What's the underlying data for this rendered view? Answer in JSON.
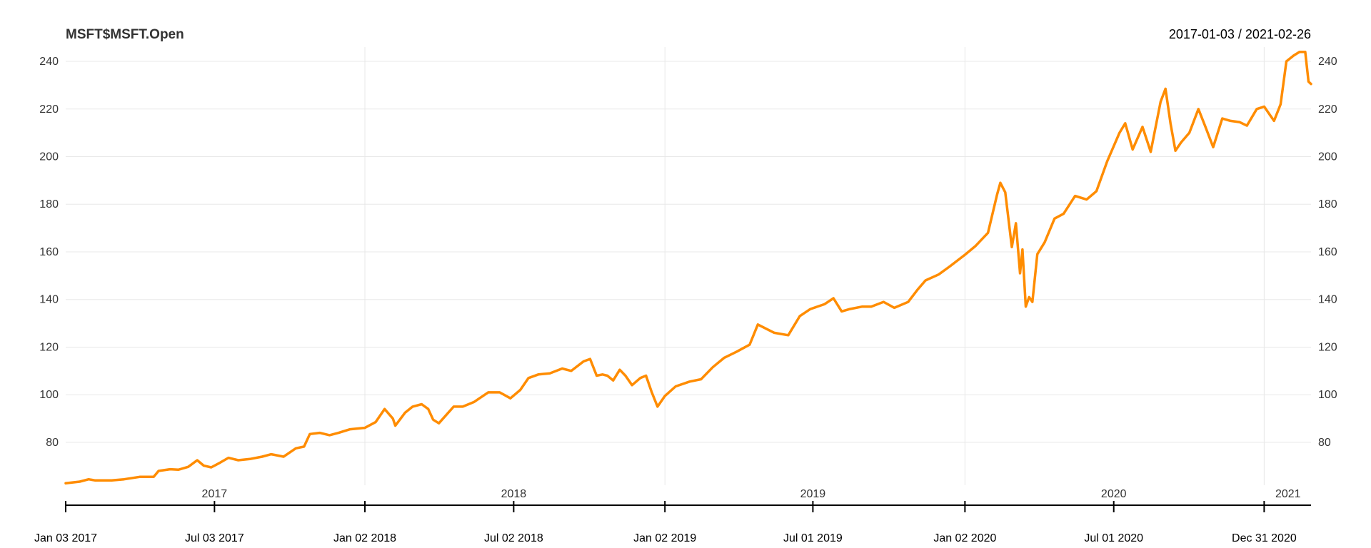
{
  "header": {
    "title": "MSFT$MSFT.Open",
    "date_range": "2017-01-03 / 2021-02-26"
  },
  "colors": {
    "series": "#ff8c00",
    "grid": "#e8e8e8",
    "axis": "#000000"
  },
  "chart_data": {
    "type": "line",
    "title": "MSFT$MSFT.Open",
    "subtitle": "2017-01-03 / 2021-02-26",
    "xlabel": "",
    "ylabel": "",
    "xlim": [
      "2017-01-03",
      "2021-02-26"
    ],
    "ylim": [
      62,
      246
    ],
    "grid": true,
    "legend": "none",
    "y_ticks": [
      80,
      100,
      120,
      140,
      160,
      180,
      200,
      220,
      240
    ],
    "y_tick_labels": [
      "80",
      "100",
      "120",
      "140",
      "160",
      "180",
      "200",
      "220",
      "240"
    ],
    "x_gridlines": [
      "2018-01-02",
      "2019-01-02",
      "2020-01-02",
      "2020-12-31"
    ],
    "year_labels": [
      {
        "label": "2017",
        "date": "2017-07-03"
      },
      {
        "label": "2018",
        "date": "2018-07-02"
      },
      {
        "label": "2019",
        "date": "2019-07-01"
      },
      {
        "label": "2020",
        "date": "2020-07-01"
      },
      {
        "label": "2021",
        "date": "2021-01-29"
      }
    ],
    "date_ticks": [
      {
        "label": "Jan 03 2017",
        "date": "2017-01-03"
      },
      {
        "label": "Jul 03 2017",
        "date": "2017-07-03"
      },
      {
        "label": "Jan 02 2018",
        "date": "2018-01-02"
      },
      {
        "label": "Jul 02 2018",
        "date": "2018-07-02"
      },
      {
        "label": "Jan 02 2019",
        "date": "2019-01-02"
      },
      {
        "label": "Jul 01 2019",
        "date": "2019-07-01"
      },
      {
        "label": "Jan 02 2020",
        "date": "2020-01-02"
      },
      {
        "label": "Jul 01 2020",
        "date": "2020-07-01"
      },
      {
        "label": "Dec 31 2020",
        "date": "2020-12-31"
      }
    ],
    "series": [
      {
        "x": [
          "2017-01-03",
          "2017-01-20",
          "2017-01-31",
          "2017-02-08",
          "2017-02-28",
          "2017-03-15",
          "2017-04-03",
          "2017-04-20",
          "2017-04-26",
          "2017-05-10",
          "2017-05-20",
          "2017-06-01",
          "2017-06-12",
          "2017-06-20",
          "2017-06-29",
          "2017-07-10",
          "2017-07-20",
          "2017-08-01",
          "2017-08-15",
          "2017-08-30",
          "2017-09-10",
          "2017-09-25",
          "2017-10-10",
          "2017-10-20",
          "2017-10-27",
          "2017-11-08",
          "2017-11-20",
          "2017-12-01",
          "2017-12-15",
          "2018-01-02",
          "2018-01-15",
          "2018-01-26",
          "2018-02-05",
          "2018-02-08",
          "2018-02-20",
          "2018-03-01",
          "2018-03-12",
          "2018-03-20",
          "2018-03-26",
          "2018-04-02",
          "2018-04-20",
          "2018-05-01",
          "2018-05-15",
          "2018-06-01",
          "2018-06-15",
          "2018-06-28",
          "2018-07-10",
          "2018-07-20",
          "2018-08-01",
          "2018-08-15",
          "2018-08-30",
          "2018-09-10",
          "2018-09-25",
          "2018-10-03",
          "2018-10-11",
          "2018-10-18",
          "2018-10-24",
          "2018-10-31",
          "2018-11-08",
          "2018-11-15",
          "2018-11-23",
          "2018-12-03",
          "2018-12-10",
          "2018-12-17",
          "2018-12-24",
          "2019-01-02",
          "2019-01-15",
          "2019-02-01",
          "2019-02-15",
          "2019-03-01",
          "2019-03-15",
          "2019-03-30",
          "2019-04-15",
          "2019-04-25",
          "2019-05-15",
          "2019-06-01",
          "2019-06-15",
          "2019-06-28",
          "2019-07-15",
          "2019-07-26",
          "2019-08-05",
          "2019-08-15",
          "2019-08-30",
          "2019-09-10",
          "2019-09-25",
          "2019-10-08",
          "2019-10-25",
          "2019-11-05",
          "2019-11-15",
          "2019-12-01",
          "2019-12-15",
          "2020-01-02",
          "2020-01-15",
          "2020-01-30",
          "2020-02-10",
          "2020-02-14",
          "2020-02-20",
          "2020-02-28",
          "2020-03-04",
          "2020-03-09",
          "2020-03-12",
          "2020-03-16",
          "2020-03-20",
          "2020-03-24",
          "2020-03-30",
          "2020-04-08",
          "2020-04-20",
          "2020-05-01",
          "2020-05-15",
          "2020-05-29",
          "2020-06-10",
          "2020-06-23",
          "2020-07-08",
          "2020-07-15",
          "2020-07-24",
          "2020-08-05",
          "2020-08-15",
          "2020-08-27",
          "2020-09-02",
          "2020-09-08",
          "2020-09-14",
          "2020-09-21",
          "2020-10-01",
          "2020-10-12",
          "2020-10-20",
          "2020-10-30",
          "2020-11-10",
          "2020-11-20",
          "2020-12-01",
          "2020-12-10",
          "2020-12-22",
          "2020-12-31",
          "2021-01-12",
          "2021-01-20",
          "2021-01-27",
          "2021-02-05",
          "2021-02-12",
          "2021-02-19",
          "2021-02-23",
          "2021-02-26"
        ],
        "values": [
          62.8,
          63.5,
          64.5,
          64.0,
          64.0,
          64.5,
          65.5,
          65.5,
          68.0,
          68.7,
          68.5,
          69.7,
          72.5,
          70.2,
          69.5,
          71.5,
          73.5,
          72.5,
          73.0,
          74.0,
          75.0,
          74.0,
          77.5,
          78.2,
          83.5,
          84.0,
          83.0,
          84.0,
          85.5,
          86.1,
          88.5,
          94.0,
          90.0,
          87.0,
          92.5,
          95.0,
          96.0,
          94.0,
          89.5,
          88.0,
          95.0,
          95.0,
          97.0,
          101.0,
          101.0,
          98.5,
          102.0,
          107.0,
          108.5,
          109.0,
          111.0,
          110.0,
          114.0,
          115.0,
          108.0,
          108.5,
          108.0,
          106.0,
          110.5,
          108.0,
          104.0,
          107.0,
          108.0,
          101.0,
          95.0,
          99.5,
          103.5,
          105.5,
          106.5,
          111.5,
          115.5,
          118.0,
          121.0,
          129.5,
          126.0,
          125.0,
          133.0,
          136.0,
          138.0,
          140.5,
          135.0,
          136.0,
          137.0,
          137.0,
          139.0,
          136.5,
          139.0,
          144.0,
          148.0,
          150.5,
          154.0,
          158.8,
          162.5,
          168.0,
          184.0,
          189.0,
          185.0,
          162.0,
          172.0,
          151.0,
          161.0,
          137.0,
          141.0,
          139.0,
          159.0,
          164.0,
          174.0,
          176.0,
          183.5,
          182.0,
          185.5,
          198.0,
          210.0,
          214.0,
          203.0,
          212.5,
          202.0,
          223.0,
          228.5,
          214.0,
          202.5,
          206.0,
          210.0,
          220.0,
          213.0,
          204.0,
          216.0,
          215.0,
          214.5,
          213.0,
          220.0,
          221.0,
          215.0,
          222.0,
          240.0,
          242.5,
          244.0,
          244.0,
          231.5,
          230.5
        ]
      }
    ]
  }
}
